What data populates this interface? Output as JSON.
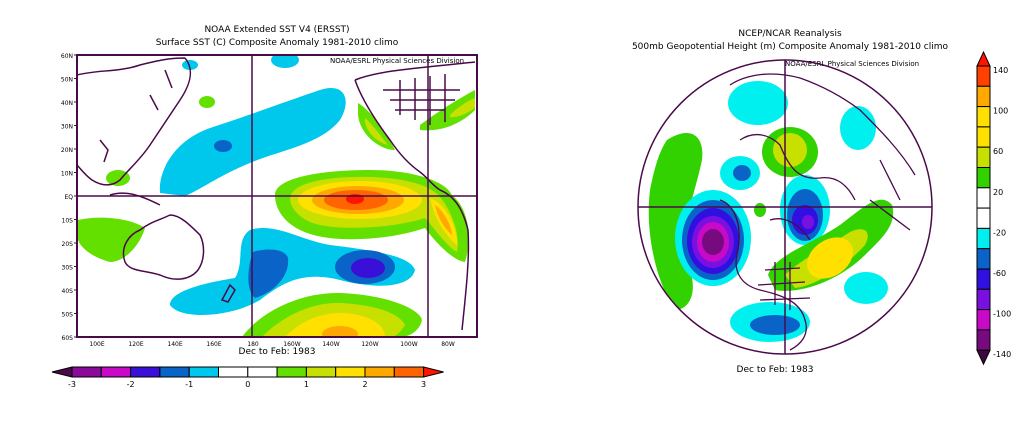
{
  "left_panel": {
    "title": "NOAA Extended SST V4 (ERSST)",
    "subtitle": "Surface SST (C) Composite Anomaly 1981-2010 climo",
    "credit": "NOAA/ESRL Physical Sciences Division",
    "period": "Dec to Feb: 1983",
    "lat_labels": [
      "60N",
      "50N",
      "40N",
      "30N",
      "20N",
      "10N",
      "EQ",
      "10S",
      "20S",
      "30S",
      "40S",
      "50S",
      "60S"
    ],
    "lon_labels": [
      "100E",
      "120E",
      "140E",
      "160E",
      "180",
      "160W",
      "140W",
      "120W",
      "100W",
      "80W"
    ],
    "colorbar": {
      "tick_labels": [
        "-3",
        "-2",
        "-1",
        "0",
        "1",
        "2",
        "3"
      ],
      "below_color": "#4a0a4a",
      "colors": [
        "#8a0a9a",
        "#c80ac8",
        "#3a10d8",
        "#0a64c8",
        "#00c8ec",
        "#ffffff",
        "#ffffff",
        "#64e000",
        "#c8e000",
        "#ffe000",
        "#ffa800",
        "#ff6400"
      ],
      "above_color": "#ff1400"
    }
  },
  "right_panel": {
    "title": "NCEP/NCAR Reanalysis",
    "subtitle": "500mb Geopotential Height (m) Composite Anomaly 1981-2010 climo",
    "credit": "NOAA/ESRL Physical Sciences Division",
    "period": "Dec to Feb: 1983",
    "colorbar": {
      "tick_labels": [
        "140",
        "100",
        "60",
        "20",
        "-20",
        "-60",
        "-100",
        "-140"
      ],
      "above_color": "#ff1400",
      "colors": [
        "#ff4000",
        "#ffa800",
        "#ffe000",
        "#ffe000",
        "#c8e000",
        "#32d200",
        "#ffffff",
        "#ffffff",
        "#00f0f0",
        "#0a64c8",
        "#3010e0",
        "#7a10e0",
        "#c80ac8",
        "#780a80"
      ],
      "below_color": "#3c0a3c"
    }
  },
  "colors": {
    "coast": "#4a0a4a",
    "frame": "#4a0a4a"
  }
}
